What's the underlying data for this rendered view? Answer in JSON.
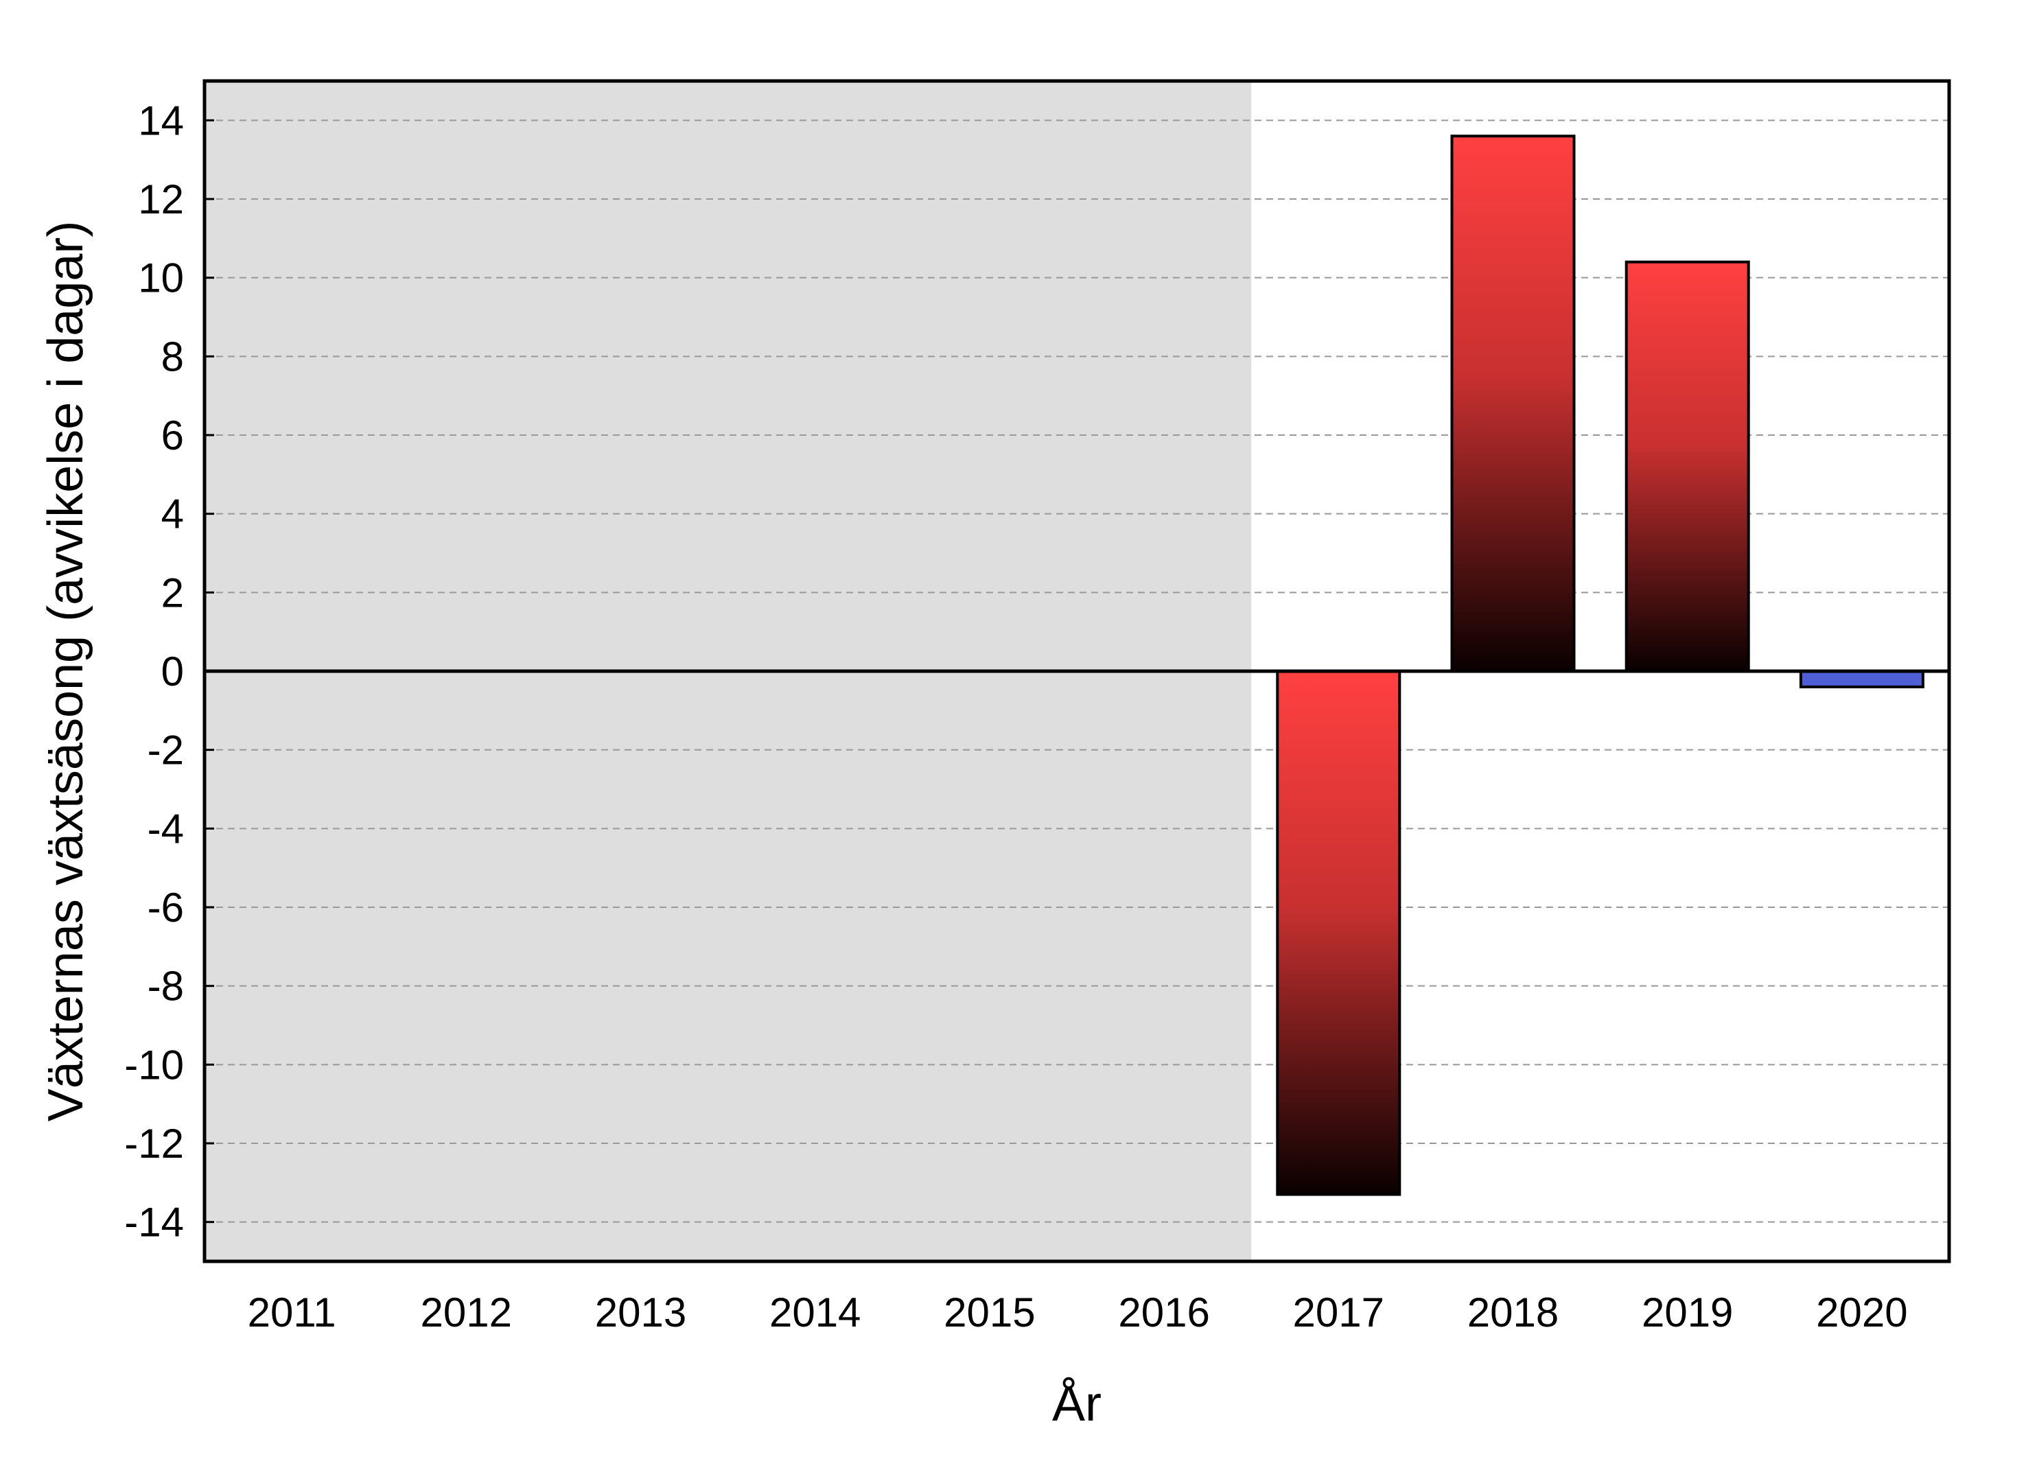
{
  "chart_data": {
    "type": "bar",
    "title": "",
    "xlabel": "År",
    "ylabel": "Växternas växtsäsong (avvikelse i dagar)",
    "categories": [
      "2011",
      "2012",
      "2013",
      "2014",
      "2015",
      "2016",
      "2017",
      "2018",
      "2019",
      "2020"
    ],
    "values": [
      null,
      null,
      null,
      null,
      null,
      null,
      -13.3,
      13.6,
      10.4,
      -0.4
    ],
    "ylim": [
      -15,
      15
    ],
    "yticks": [
      14,
      12,
      10,
      8,
      6,
      4,
      2,
      0,
      -2,
      -4,
      -6,
      -8,
      -10,
      -12,
      -14
    ],
    "grid": true,
    "grid_style": "dashed",
    "shaded_region": {
      "from_category": "2011",
      "to_category": "2016",
      "color": "#dedede"
    },
    "colors": {
      "warm_top": "#ff4040",
      "warm_bottom": "#0a0000",
      "cool": "#4f5fd6",
      "grid": "#999999"
    }
  }
}
